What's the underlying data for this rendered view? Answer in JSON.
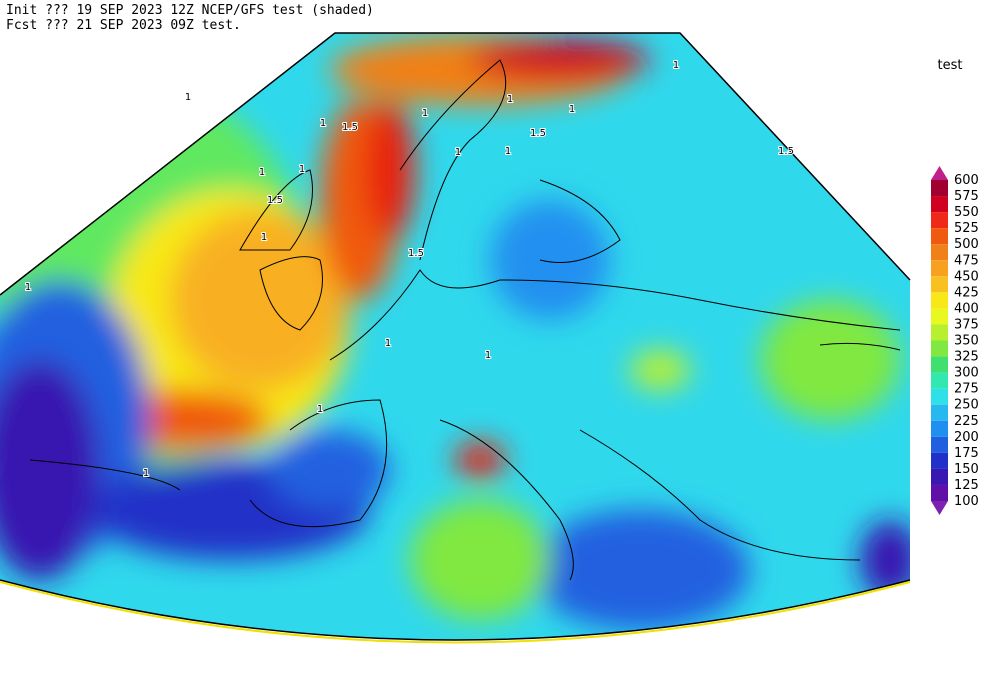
{
  "header": {
    "line1": "Init  ??? 19 SEP 2023 12Z   NCEP/GFS test (shaded)",
    "line2": "Fcst ??? 21 SEP 2023 09Z   test."
  },
  "legend": {
    "title": "test",
    "levels": [
      600,
      575,
      550,
      525,
      500,
      475,
      450,
      425,
      400,
      375,
      350,
      325,
      300,
      275,
      250,
      225,
      200,
      175,
      150,
      125,
      100
    ],
    "colors": [
      "#c0208c",
      "#a00030",
      "#d00020",
      "#f02818",
      "#f05a10",
      "#f08018",
      "#f8a020",
      "#f8c020",
      "#f8e818",
      "#e8f820",
      "#b8f030",
      "#80e840",
      "#40e070",
      "#30e8b0",
      "#30e0e8",
      "#28b8f0",
      "#2090f0",
      "#2060e0",
      "#2030c8",
      "#3818b0",
      "#6010a8",
      "#8020b0"
    ]
  },
  "map": {
    "contour_labels": [
      "1",
      "1",
      "1",
      "1.5",
      "1",
      "1",
      "1.5",
      "1",
      "1",
      "1",
      "1.5",
      "1",
      "1",
      "1.5",
      "1",
      "1",
      "1",
      "1",
      "1",
      "1",
      "1.5"
    ]
  }
}
